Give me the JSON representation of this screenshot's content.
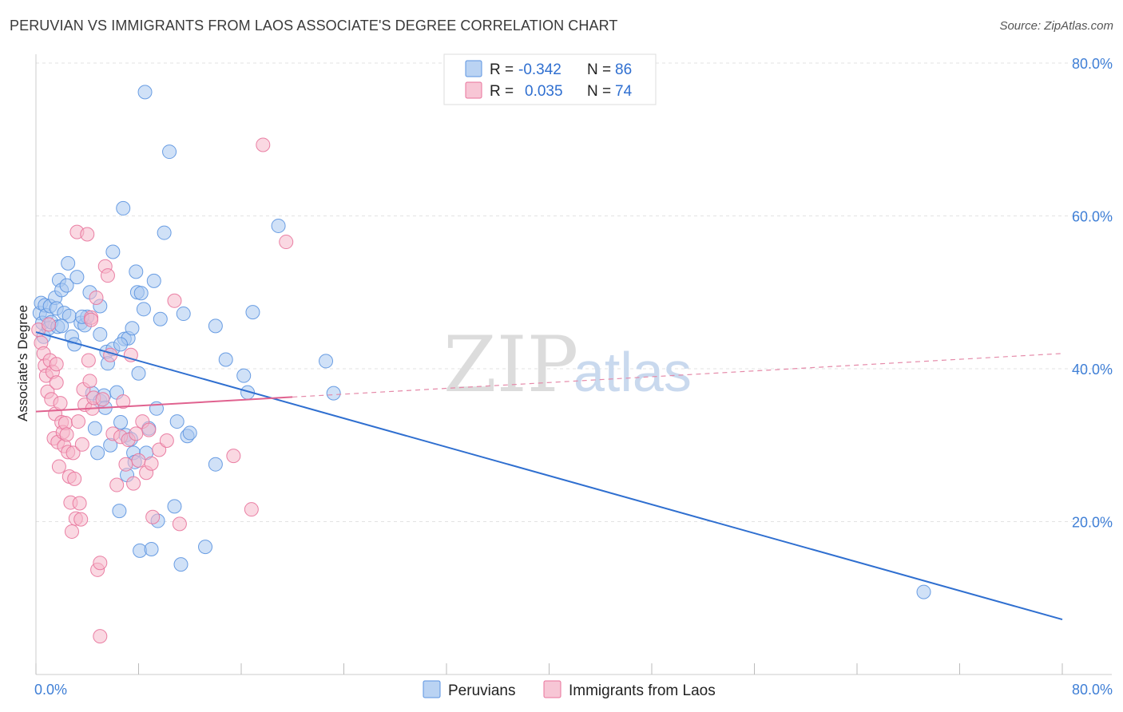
{
  "title": "PERUVIAN VS IMMIGRANTS FROM LAOS ASSOCIATE'S DEGREE CORRELATION CHART",
  "source": "Source: ZipAtlas.com",
  "watermark": {
    "zip": "ZIP",
    "atlas": "atlas"
  },
  "colors": {
    "blue": "#5b93e0",
    "blue_fill": "#a9c8f0",
    "pink": "#e8739b",
    "pink_fill": "#f5b8cb",
    "axis_text": "#3f7fd6",
    "grid": "#e3e3e3"
  },
  "legend": {
    "r_label": "R =",
    "n_label": "N =",
    "series": [
      {
        "r": "-0.342",
        "n": "86"
      },
      {
        "r": "0.035",
        "n": "74"
      }
    ]
  },
  "bottom_legend": [
    "Peruvians",
    "Immigrants from Laos"
  ],
  "chart_data": {
    "type": "scatter",
    "title": "PERUVIAN VS IMMIGRANTS FROM LAOS ASSOCIATE'S DEGREE CORRELATION CHART",
    "xlabel": "",
    "ylabel": "Associate's Degree",
    "xlim": [
      0,
      80
    ],
    "ylim": [
      0,
      80
    ],
    "x_tick_labels": [
      "0.0%",
      "80.0%"
    ],
    "y_tick_labels": [
      "20.0%",
      "40.0%",
      "60.0%",
      "80.0%"
    ],
    "y_ticks": [
      20,
      40,
      60,
      80
    ],
    "grid": true,
    "legend_position": "top-center",
    "series": [
      {
        "name": "Peruvians",
        "r": -0.342,
        "n": 86,
        "trend": {
          "x": [
            0,
            80
          ],
          "y": [
            44.8,
            7.2
          ],
          "style": "solid"
        },
        "points": [
          [
            0.3,
            47.3
          ],
          [
            0.4,
            48.6
          ],
          [
            0.5,
            46.0
          ],
          [
            0.6,
            44.2
          ],
          [
            0.7,
            48.3
          ],
          [
            0.8,
            47.0
          ],
          [
            1.0,
            45.3
          ],
          [
            1.1,
            48.2
          ],
          [
            1.2,
            46.1
          ],
          [
            1.5,
            49.3
          ],
          [
            1.6,
            47.9
          ],
          [
            1.7,
            45.5
          ],
          [
            1.8,
            51.6
          ],
          [
            2.0,
            50.3
          ],
          [
            2.2,
            47.3
          ],
          [
            2.4,
            50.9
          ],
          [
            2.5,
            53.8
          ],
          [
            2.6,
            46.9
          ],
          [
            2.8,
            44.2
          ],
          [
            3.0,
            43.2
          ],
          [
            3.2,
            52.0
          ],
          [
            3.5,
            46.0
          ],
          [
            3.8,
            45.7
          ],
          [
            4.0,
            46.8
          ],
          [
            4.2,
            50.0
          ],
          [
            4.4,
            36.8
          ],
          [
            4.6,
            32.2
          ],
          [
            4.8,
            29.0
          ],
          [
            5.0,
            35.8
          ],
          [
            5.0,
            48.2
          ],
          [
            5.3,
            36.5
          ],
          [
            5.4,
            34.9
          ],
          [
            5.5,
            42.2
          ],
          [
            5.6,
            40.7
          ],
          [
            5.8,
            30.0
          ],
          [
            6.0,
            55.3
          ],
          [
            6.0,
            42.6
          ],
          [
            6.3,
            36.9
          ],
          [
            6.5,
            21.4
          ],
          [
            6.6,
            33.0
          ],
          [
            6.8,
            61.0
          ],
          [
            6.9,
            43.9
          ],
          [
            7.0,
            31.3
          ],
          [
            7.1,
            26.1
          ],
          [
            7.2,
            44.0
          ],
          [
            7.4,
            30.8
          ],
          [
            7.5,
            45.3
          ],
          [
            7.6,
            29.0
          ],
          [
            7.7,
            27.8
          ],
          [
            7.8,
            52.7
          ],
          [
            7.9,
            50.0
          ],
          [
            8.0,
            39.4
          ],
          [
            8.1,
            16.2
          ],
          [
            8.2,
            49.9
          ],
          [
            8.4,
            47.8
          ],
          [
            8.6,
            29.0
          ],
          [
            8.8,
            32.2
          ],
          [
            9.0,
            16.4
          ],
          [
            9.2,
            51.5
          ],
          [
            9.4,
            34.8
          ],
          [
            9.5,
            20.1
          ],
          [
            9.7,
            46.5
          ],
          [
            10.0,
            57.8
          ],
          [
            10.4,
            68.4
          ],
          [
            10.8,
            22.0
          ],
          [
            11.0,
            33.1
          ],
          [
            11.3,
            14.4
          ],
          [
            11.5,
            47.2
          ],
          [
            11.8,
            31.2
          ],
          [
            12.0,
            31.6
          ],
          [
            13.2,
            16.7
          ],
          [
            14.0,
            27.5
          ],
          [
            14.0,
            45.6
          ],
          [
            14.8,
            41.2
          ],
          [
            16.2,
            39.1
          ],
          [
            16.5,
            36.9
          ],
          [
            16.9,
            47.4
          ],
          [
            18.9,
            58.7
          ],
          [
            22.6,
            41.0
          ],
          [
            23.2,
            36.8
          ],
          [
            8.5,
            76.2
          ],
          [
            69.2,
            10.8
          ],
          [
            5.0,
            44.5
          ],
          [
            3.6,
            46.8
          ],
          [
            2.0,
            45.6
          ],
          [
            6.6,
            43.2
          ]
        ]
      },
      {
        "name": "Immigrants from Laos",
        "r": 0.035,
        "n": 74,
        "trend": {
          "x": [
            0,
            20
          ],
          "y": [
            34.4,
            36.3
          ],
          "style": "solid",
          "extended_x": [
            20,
            80
          ],
          "extended_y": [
            36.3,
            42.0
          ],
          "extended_style": "dashed"
        },
        "points": [
          [
            0.2,
            45.1
          ],
          [
            0.4,
            43.4
          ],
          [
            0.6,
            42.0
          ],
          [
            0.7,
            40.4
          ],
          [
            0.8,
            39.1
          ],
          [
            0.9,
            37.0
          ],
          [
            1.0,
            45.8
          ],
          [
            1.1,
            41.1
          ],
          [
            1.2,
            36.0
          ],
          [
            1.3,
            39.6
          ],
          [
            1.4,
            30.9
          ],
          [
            1.5,
            34.1
          ],
          [
            1.6,
            38.2
          ],
          [
            1.7,
            30.4
          ],
          [
            1.8,
            27.2
          ],
          [
            1.9,
            35.5
          ],
          [
            2.0,
            33.0
          ],
          [
            2.1,
            31.7
          ],
          [
            2.2,
            29.9
          ],
          [
            2.3,
            32.9
          ],
          [
            2.4,
            31.4
          ],
          [
            2.5,
            29.1
          ],
          [
            2.6,
            25.9
          ],
          [
            2.7,
            22.5
          ],
          [
            2.8,
            18.7
          ],
          [
            2.9,
            29.0
          ],
          [
            3.0,
            25.6
          ],
          [
            3.1,
            20.4
          ],
          [
            3.2,
            57.9
          ],
          [
            3.3,
            33.1
          ],
          [
            3.4,
            22.4
          ],
          [
            3.5,
            20.3
          ],
          [
            3.6,
            30.1
          ],
          [
            3.7,
            37.3
          ],
          [
            3.8,
            35.3
          ],
          [
            4.0,
            57.6
          ],
          [
            4.1,
            41.1
          ],
          [
            4.2,
            38.4
          ],
          [
            4.3,
            46.7
          ],
          [
            4.4,
            34.8
          ],
          [
            4.5,
            36.2
          ],
          [
            4.7,
            49.3
          ],
          [
            4.8,
            13.7
          ],
          [
            5.0,
            14.6
          ],
          [
            5.2,
            36.0
          ],
          [
            5.4,
            53.4
          ],
          [
            5.6,
            52.2
          ],
          [
            5.8,
            41.8
          ],
          [
            6.0,
            31.5
          ],
          [
            6.3,
            24.8
          ],
          [
            6.6,
            31.1
          ],
          [
            6.8,
            35.7
          ],
          [
            7.0,
            27.5
          ],
          [
            7.2,
            30.7
          ],
          [
            7.4,
            41.8
          ],
          [
            7.6,
            25.0
          ],
          [
            7.8,
            31.5
          ],
          [
            8.0,
            28.0
          ],
          [
            8.3,
            33.1
          ],
          [
            8.6,
            26.4
          ],
          [
            8.8,
            32.0
          ],
          [
            9.0,
            27.6
          ],
          [
            9.1,
            20.6
          ],
          [
            9.6,
            29.4
          ],
          [
            10.2,
            30.6
          ],
          [
            10.8,
            48.9
          ],
          [
            11.2,
            19.7
          ],
          [
            15.4,
            28.6
          ],
          [
            16.8,
            21.6
          ],
          [
            17.7,
            69.3
          ],
          [
            19.5,
            56.6
          ],
          [
            5.0,
            5.0
          ],
          [
            4.3,
            46.4
          ],
          [
            1.6,
            40.6
          ]
        ]
      }
    ]
  }
}
